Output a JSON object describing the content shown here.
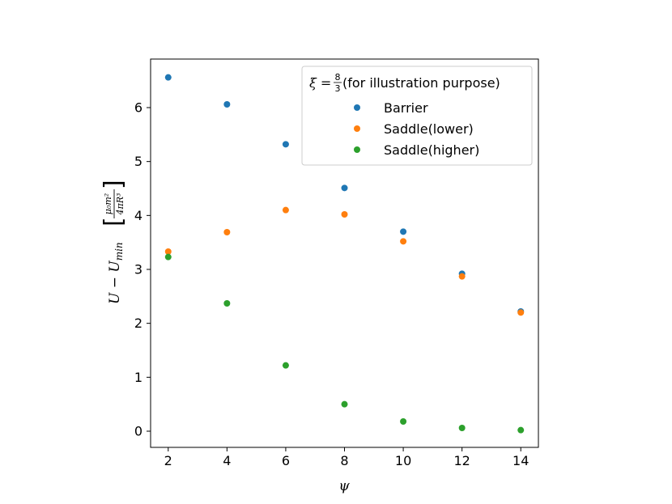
{
  "chart_data": {
    "type": "scatter",
    "xlabel": "ψ",
    "ylabel": {
      "main": "U − U",
      "sub": "min",
      "num": "μ₀m²",
      "den": "4πR³"
    },
    "xlim": [
      1.4,
      14.6
    ],
    "ylim": [
      -0.3,
      6.9
    ],
    "xticks": [
      2,
      4,
      6,
      8,
      10,
      12,
      14
    ],
    "yticks": [
      0,
      1,
      2,
      3,
      4,
      5,
      6
    ],
    "grid": false,
    "legend": {
      "placement": "top-right",
      "title_prefix": "ξ = ",
      "title_num": "8",
      "title_den": "3",
      "title_suffix": " (for illustration purpose)"
    },
    "x": [
      2,
      4,
      6,
      8,
      10,
      12,
      14
    ],
    "series": [
      {
        "name": "Barrier",
        "color": "#1f77b4",
        "values": [
          6.56,
          6.06,
          5.32,
          4.51,
          3.7,
          2.92,
          2.22
        ]
      },
      {
        "name": "Saddle(lower)",
        "color": "#ff7f0e",
        "values": [
          3.33,
          3.69,
          4.1,
          4.02,
          3.52,
          2.87,
          2.2
        ]
      },
      {
        "name": "Saddle(higher)",
        "color": "#2ca02c",
        "values": [
          3.23,
          2.37,
          1.22,
          0.5,
          0.18,
          0.06,
          0.02
        ]
      }
    ]
  }
}
